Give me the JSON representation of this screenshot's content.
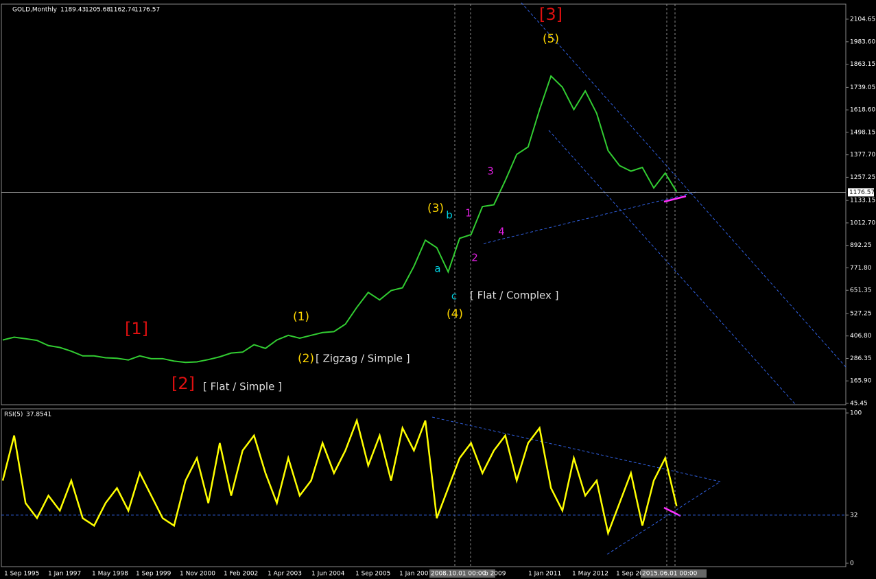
{
  "chart_data": [
    {
      "type": "line",
      "title": "GOLD,Monthly",
      "ohlc": [
        1189.43,
        1205.68,
        1162.74,
        1176.57
      ],
      "color": "#32cd32",
      "values": [
        385,
        400,
        392,
        383,
        355,
        345,
        325,
        300,
        300,
        290,
        287,
        278,
        300,
        285,
        285,
        272,
        265,
        268,
        280,
        295,
        315,
        320,
        360,
        340,
        385,
        410,
        395,
        410,
        425,
        430,
        470,
        560,
        640,
        600,
        650,
        665,
        780,
        920,
        880,
        750,
        930,
        950,
        1100,
        1110,
        1240,
        1380,
        1420,
        1620,
        1800,
        1740,
        1620,
        1720,
        1600,
        1400,
        1320,
        1290,
        1310,
        1200,
        1280,
        1180
      ],
      "ylim": [
        38,
        2178
      ],
      "yticks": [
        2104.65,
        {
          "value": 1983.6,
          "label": "1983.60"
        },
        1863.15,
        1739.05,
        {
          "value": 1618.6,
          "label": "1618.60"
        },
        1498.15,
        {
          "value": 1377.7,
          "label": "1377.70"
        },
        1257.25,
        1133.15,
        {
          "value": 1012.7,
          "label": "1012.70"
        },
        892.25,
        {
          "value": 771.8,
          "label": "771.80"
        },
        651.35,
        527.25,
        {
          "value": 406.8,
          "label": "406.80"
        },
        286.35,
        {
          "value": 165.9,
          "label": "165.90"
        },
        45.45
      ],
      "annotations": [
        "[3]",
        "(5)",
        "[1]",
        "[2]",
        "(1)",
        "(2)",
        "[ Zigzag / Simple ]",
        "[ Flat / Simple ]",
        "(3)",
        "b",
        "a",
        "c",
        "(4)",
        "1",
        "2",
        "3",
        "4",
        "[ Flat / Complex ]"
      ]
    },
    {
      "type": "line",
      "title": "RSI(5)",
      "current": 37.8541,
      "color": "#ffff00",
      "values": [
        55,
        85,
        40,
        30,
        45,
        35,
        55,
        30,
        25,
        40,
        50,
        35,
        60,
        45,
        30,
        25,
        55,
        70,
        40,
        80,
        45,
        75,
        85,
        60,
        40,
        70,
        45,
        55,
        80,
        60,
        75,
        95,
        65,
        85,
        55,
        90,
        75,
        95,
        30,
        50,
        70,
        80,
        60,
        75,
        85,
        55,
        80,
        90,
        50,
        35,
        70,
        45,
        55,
        20,
        40,
        60,
        25,
        55,
        70,
        38
      ],
      "ylim": [
        0,
        100
      ],
      "yticks": [
        100,
        32,
        0
      ],
      "x_labels": [
        "1 Sep 1995",
        "1 Jan 1997",
        "1 May 1998",
        "1 Sep 1999",
        "1 Nov 2000",
        "1 Feb 2002",
        "1 Apr 2003",
        "1 Jun 2004",
        "1 Sep 2005",
        "1 Jan 2007",
        "2008.10.01 00:00",
        "b 2009",
        "1 Jan 2011",
        "1 May 2012",
        "1 Sep 20",
        "2015.06.01 00:00"
      ]
    }
  ]
}
